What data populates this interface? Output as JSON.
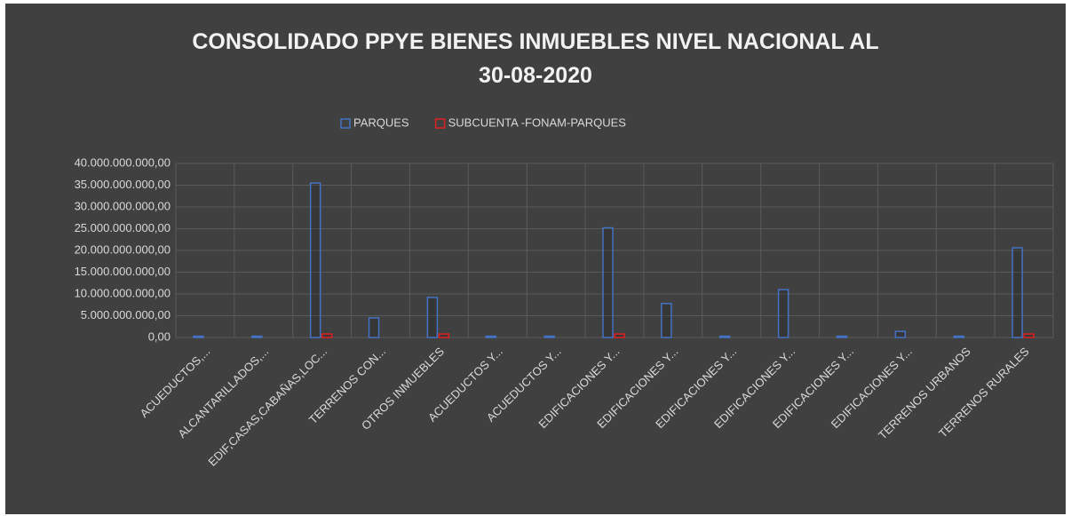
{
  "chart_data": {
    "type": "bar",
    "title": "CONSOLIDADO PPYE BIENES INMUEBLES NIVEL NACIONAL AL 30-08-2020",
    "categories": [
      "ACUEDUCTOS,...",
      "ALCANTARILLADOS,...",
      "EDIF,CASAS,CABAÑAS,LOC...",
      "TERRENOS CON...",
      "OTROS INMUEBLES",
      "ACUEDUCTOS Y...",
      "ACUEDUCTOS Y...",
      "EDIFICACIONES Y...",
      "EDIFICACIONES Y...",
      "EDIFICACIONES Y...",
      "EDIFICACIONES Y...",
      "EDIFICACIONES Y...",
      "EDIFICACIONES Y...",
      "TERRENOS URBANOS",
      "TERRENOS RURALES"
    ],
    "series": [
      {
        "name": "PARQUES",
        "color": "#4472c4",
        "values": [
          300000000,
          300000000,
          35500000000,
          4500000000,
          9200000000,
          300000000,
          300000000,
          25200000000,
          7800000000,
          300000000,
          11000000000,
          300000000,
          1400000000,
          300000000,
          20600000000
        ]
      },
      {
        "name": "SUBCUENTA -FONAM-PARQUES",
        "color": "#e02020",
        "values": [
          0,
          0,
          800000000,
          0,
          800000000,
          0,
          0,
          800000000,
          0,
          0,
          0,
          0,
          0,
          0,
          800000000
        ]
      }
    ],
    "ylim": [
      0,
      40000000000
    ],
    "yticks": [
      {
        "value": 0,
        "label": "0,00"
      },
      {
        "value": 5000000000,
        "label": "5.000.000.000,00"
      },
      {
        "value": 10000000000,
        "label": "10.000.000.000,00"
      },
      {
        "value": 15000000000,
        "label": "15.000.000.000,00"
      },
      {
        "value": 20000000000,
        "label": "20.000.000.000,00"
      },
      {
        "value": 25000000000,
        "label": "25.000.000.000,00"
      },
      {
        "value": 30000000000,
        "label": "30.000.000.000,00"
      },
      {
        "value": 35000000000,
        "label": "35.000.000.000,00"
      },
      {
        "value": 40000000000,
        "label": "40.000.000.000,00"
      }
    ],
    "grid": true,
    "legend": "top"
  }
}
